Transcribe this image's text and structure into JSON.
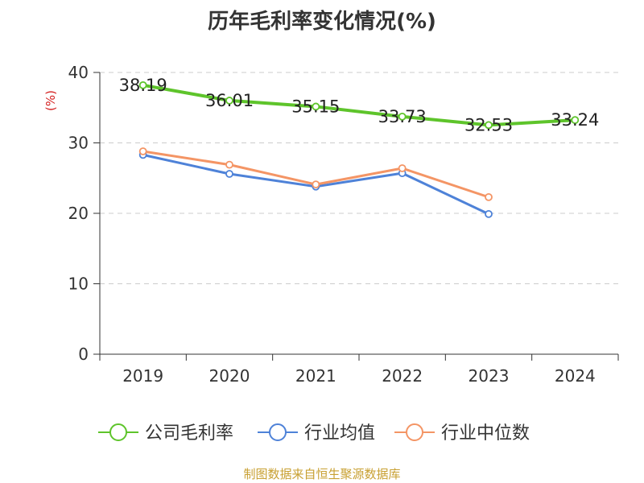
{
  "title": "历年毛利率变化情况(%)",
  "footer": "制图数据来自恒生聚源数据库",
  "colors": {
    "company": "#5ec42b",
    "industry_avg": "#4e82d8",
    "industry_median": "#f49565",
    "ylabel": "#d42020",
    "grid": "#cccccc",
    "axis": "#333333",
    "footer": "#c8a032"
  },
  "chart_data": {
    "type": "line",
    "title": "历年毛利率变化情况(%)",
    "xlabel": "",
    "ylabel": "(%)",
    "categories": [
      "2019",
      "2020",
      "2021",
      "2022",
      "2023",
      "2024"
    ],
    "ylim": [
      0,
      40
    ],
    "yticks": [
      0,
      10,
      20,
      30,
      40
    ],
    "grid": "horizontal dashed",
    "legend_position": "bottom",
    "series": [
      {
        "name": "公司毛利率",
        "values": [
          38.19,
          36.01,
          35.15,
          33.73,
          32.53,
          33.24
        ],
        "labels": [
          "38.19",
          "36.01",
          "35.15",
          "33.73",
          "32.53",
          "33.24"
        ]
      },
      {
        "name": "行业均值",
        "values": [
          28.3,
          25.6,
          23.8,
          25.7,
          19.9,
          null
        ]
      },
      {
        "name": "行业中位数",
        "values": [
          28.8,
          26.9,
          24.1,
          26.4,
          22.3,
          null
        ]
      }
    ]
  }
}
